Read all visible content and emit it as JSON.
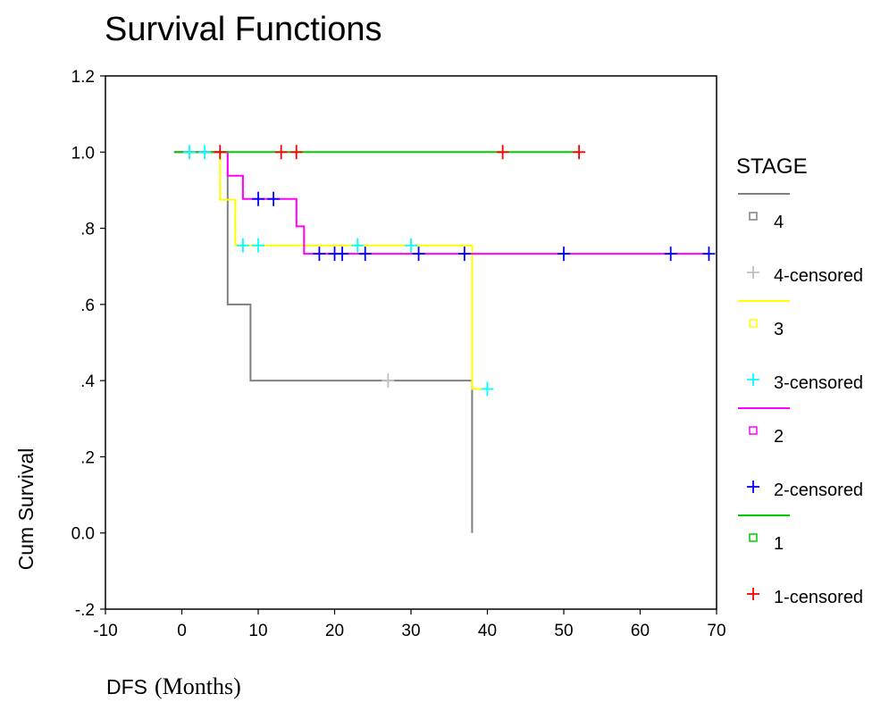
{
  "chart_data": {
    "type": "line",
    "title": "Survival Functions",
    "xlabel": "DFS",
    "xlabel_unit": "(Months)",
    "ylabel": "Cum Survival",
    "xlim": [
      -10,
      70
    ],
    "ylim": [
      -0.2,
      1.2
    ],
    "x_ticks": [
      -10,
      0,
      10,
      20,
      30,
      40,
      50,
      60,
      70
    ],
    "x_tick_labels": [
      "-10",
      "0",
      "10",
      "20",
      "30",
      "40",
      "50",
      "60",
      "70"
    ],
    "y_ticks": [
      -0.2,
      0.0,
      0.2,
      0.4,
      0.6,
      0.8,
      1.0,
      1.2
    ],
    "y_tick_labels": [
      "-.2",
      "0.0",
      ".2",
      ".4",
      ".6",
      ".8",
      "1.0",
      "1.2"
    ],
    "grid": false,
    "legend_position": "right",
    "legend_title": "STAGE",
    "series": [
      {
        "name": "4",
        "censored_name": "4-censored",
        "color": "#808080",
        "censor_color": "#c0c0c0",
        "steps": [
          [
            -1,
            1.0
          ],
          [
            6,
            1.0
          ],
          [
            6,
            0.6
          ],
          [
            9,
            0.6
          ],
          [
            9,
            0.4
          ],
          [
            38,
            0.4
          ],
          [
            38,
            0.0
          ]
        ],
        "censored": [
          [
            27,
            0.4
          ]
        ]
      },
      {
        "name": "3",
        "censored_name": "3-censored",
        "color": "#ffff00",
        "censor_color": "#00ffff",
        "steps": [
          [
            -1,
            1.0
          ],
          [
            5,
            1.0
          ],
          [
            5,
            0.875
          ],
          [
            7,
            0.875
          ],
          [
            7,
            0.755
          ],
          [
            38,
            0.755
          ],
          [
            38,
            0.378
          ],
          [
            40,
            0.378
          ]
        ],
        "censored": [
          [
            1,
            1.0
          ],
          [
            3,
            1.0
          ],
          [
            8,
            0.755
          ],
          [
            10,
            0.755
          ],
          [
            23,
            0.755
          ],
          [
            30,
            0.755
          ],
          [
            40,
            0.378
          ]
        ]
      },
      {
        "name": "2",
        "censored_name": "2-censored",
        "color": "#ff00ff",
        "censor_color": "#0000ff",
        "steps": [
          [
            -1,
            1.0
          ],
          [
            6,
            1.0
          ],
          [
            6,
            0.938
          ],
          [
            8,
            0.938
          ],
          [
            8,
            0.877
          ],
          [
            15,
            0.877
          ],
          [
            15,
            0.805
          ],
          [
            16,
            0.805
          ],
          [
            16,
            0.733
          ],
          [
            69,
            0.733
          ]
        ],
        "censored": [
          [
            10,
            0.877
          ],
          [
            12,
            0.877
          ],
          [
            18,
            0.733
          ],
          [
            20,
            0.733
          ],
          [
            21,
            0.733
          ],
          [
            24,
            0.733
          ],
          [
            31,
            0.733
          ],
          [
            37,
            0.733
          ],
          [
            50,
            0.733
          ],
          [
            64,
            0.733
          ],
          [
            69,
            0.733
          ]
        ]
      },
      {
        "name": "1",
        "censored_name": "1-censored",
        "color": "#00cc00",
        "censor_color": "#ff0000",
        "steps": [
          [
            -1,
            1.0
          ],
          [
            52,
            1.0
          ]
        ],
        "censored": [
          [
            5,
            1.0
          ],
          [
            13,
            1.0
          ],
          [
            15,
            1.0
          ],
          [
            42,
            1.0
          ],
          [
            52,
            1.0
          ]
        ]
      }
    ]
  }
}
